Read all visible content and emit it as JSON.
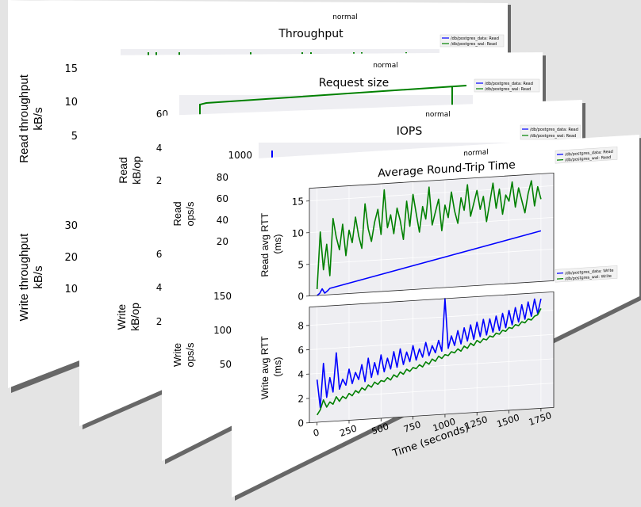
{
  "condition_label": "normal",
  "legend": {
    "read": [
      "/db/postgres_data: Read",
      "/db/postgres_wal: Read"
    ],
    "write": [
      "/db/postgres_data: Write",
      "/db/postgres_wal: Write"
    ]
  },
  "colors": {
    "data": "#0000ff",
    "wal": "#008000"
  },
  "x_axis": {
    "label": "Time (seconds)",
    "ticks": [
      0,
      250,
      500,
      750,
      1000,
      1250,
      1500,
      1750
    ],
    "range": [
      -60,
      1850
    ]
  },
  "pages": [
    {
      "title": "Throughput",
      "top_ylabel": [
        "Read throughput",
        "kB/s"
      ],
      "bottom_ylabel": [
        "Write throughput",
        "kB/s"
      ],
      "top_ticks": [
        "15",
        "10",
        "5"
      ],
      "bottom_ticks": [
        "30",
        "20",
        "10"
      ]
    },
    {
      "title": "Request size",
      "top_ylabel": [
        "Read",
        "kB/op"
      ],
      "bottom_ylabel": [
        "Write",
        "kB/op"
      ],
      "top_ticks": [
        "60",
        "40",
        "20"
      ],
      "bottom_ticks": [
        "60",
        "40",
        "20"
      ]
    },
    {
      "title": "IOPS",
      "top_ylabel": [
        "Read",
        "ops/s"
      ],
      "bottom_ylabel": [
        "Write",
        "ops/s"
      ],
      "top_ticks": [
        "1000",
        "80",
        "60",
        "40",
        "20"
      ],
      "bottom_ticks": [
        "150",
        "100",
        "50"
      ]
    }
  ],
  "chart_data": {
    "type": "line",
    "title": "Average Round-Trip Time",
    "xlabel": "Time (seconds)",
    "panels": [
      {
        "ylabel": "Read avg RTT\n(ms)",
        "ylim": [
          0,
          17
        ],
        "yticks": [
          0,
          5,
          10,
          15
        ],
        "series": [
          {
            "name": "/db/postgres_data: Read",
            "x": [
              0,
              20,
              40,
              60,
              80,
              100,
              1750
            ],
            "y": [
              0,
              0.3,
              1,
              0.3,
              0.6,
              1.0,
              8.0
            ]
          },
          {
            "name": "/db/postgres_wal: Read",
            "x": [
              0,
              25,
              50,
              75,
              100,
              125,
              150,
              175,
              200,
              225,
              250,
              275,
              300,
              325,
              350,
              375,
              400,
              425,
              450,
              475,
              500,
              525,
              550,
              575,
              600,
              625,
              650,
              675,
              700,
              725,
              750,
              775,
              800,
              825,
              850,
              875,
              900,
              925,
              950,
              975,
              1000,
              1025,
              1050,
              1075,
              1100,
              1125,
              1150,
              1175,
              1200,
              1225,
              1250,
              1275,
              1300,
              1325,
              1350,
              1375,
              1400,
              1425,
              1450,
              1475,
              1500,
              1525,
              1550,
              1575,
              1600,
              1625,
              1650,
              1675,
              1700,
              1725,
              1750
            ],
            "y": [
              1,
              10,
              4,
              8,
              3,
              12,
              9,
              7,
              11,
              6,
              10,
              8,
              12,
              9,
              7,
              14,
              10,
              8,
              11,
              13,
              9,
              16,
              10,
              12,
              9,
              13,
              11,
              8,
              14,
              10,
              15,
              12,
              9,
              13,
              11,
              16,
              10,
              12,
              14,
              9,
              13,
              11,
              15,
              12,
              10,
              14,
              12,
              16,
              11,
              13,
              15,
              12,
              14,
              10,
              13,
              16,
              12,
              15,
              11,
              14,
              13,
              16,
              12,
              15,
              13,
              11,
              14,
              16,
              12,
              15,
              13
            ]
          }
        ]
      },
      {
        "ylabel": "Write avg RTT\n(ms)",
        "ylim": [
          0,
          9.5
        ],
        "yticks": [
          0,
          2,
          4,
          6,
          8
        ],
        "series": [
          {
            "name": "/db/postgres_data: Write",
            "x": [
              0,
              25,
              50,
              75,
              100,
              125,
              150,
              175,
              200,
              225,
              250,
              275,
              300,
              325,
              350,
              375,
              400,
              425,
              450,
              475,
              500,
              525,
              550,
              575,
              600,
              625,
              650,
              675,
              700,
              725,
              750,
              775,
              800,
              825,
              850,
              875,
              900,
              925,
              950,
              975,
              1000,
              1025,
              1050,
              1075,
              1100,
              1125,
              1150,
              1175,
              1200,
              1225,
              1250,
              1275,
              1300,
              1325,
              1350,
              1375,
              1400,
              1425,
              1450,
              1475,
              1500,
              1525,
              1550,
              1575,
              1600,
              1625,
              1650,
              1675,
              1700,
              1725,
              1750
            ],
            "y": [
              3.5,
              1.2,
              4.8,
              2.0,
              3.6,
              2.4,
              5.6,
              2.6,
              3.4,
              2.9,
              4.2,
              3.0,
              3.9,
              3.3,
              4.5,
              3.1,
              5.0,
              3.4,
              4.6,
              3.6,
              5.2,
              3.8,
              4.9,
              4.0,
              5.4,
              4.1,
              5.6,
              4.3,
              5.3,
              4.5,
              5.8,
              4.6,
              5.5,
              4.8,
              6.0,
              4.9,
              5.7,
              5.1,
              6.1,
              5.2,
              9.5,
              5.4,
              6.4,
              5.6,
              6.8,
              5.7,
              7.0,
              5.9,
              7.2,
              6.0,
              7.4,
              6.2,
              7.6,
              6.3,
              7.6,
              6.5,
              7.8,
              6.6,
              8.0,
              6.8,
              8.2,
              7.0,
              8.4,
              7.2,
              8.6,
              7.4,
              8.8,
              7.6,
              9.0,
              7.8,
              9.0
            ]
          },
          {
            "name": "/db/postgres_wal: Write",
            "x": [
              0,
              25,
              50,
              75,
              100,
              125,
              150,
              175,
              200,
              225,
              250,
              275,
              300,
              325,
              350,
              375,
              400,
              425,
              450,
              475,
              500,
              525,
              550,
              575,
              600,
              625,
              650,
              675,
              700,
              725,
              750,
              775,
              800,
              825,
              850,
              875,
              900,
              925,
              950,
              975,
              1000,
              1025,
              1050,
              1075,
              1100,
              1125,
              1150,
              1175,
              1200,
              1225,
              1250,
              1275,
              1300,
              1325,
              1350,
              1375,
              1400,
              1425,
              1450,
              1475,
              1500,
              1525,
              1550,
              1575,
              1600,
              1625,
              1650,
              1675,
              1700,
              1725,
              1750
            ],
            "y": [
              0.6,
              1.0,
              1.8,
              1.2,
              1.6,
              1.4,
              2.0,
              1.6,
              2.0,
              1.8,
              2.2,
              2.0,
              2.4,
              2.2,
              2.6,
              2.4,
              2.8,
              2.6,
              3.0,
              2.8,
              3.1,
              3.0,
              3.3,
              3.1,
              3.5,
              3.3,
              3.7,
              3.5,
              3.9,
              3.7,
              4.0,
              3.9,
              4.2,
              4.0,
              4.4,
              4.2,
              4.6,
              4.4,
              4.8,
              4.6,
              4.9,
              4.8,
              5.1,
              5.0,
              5.3,
              5.1,
              5.5,
              5.3,
              5.7,
              5.5,
              5.9,
              5.7,
              6.0,
              5.9,
              6.2,
              6.1,
              6.4,
              6.3,
              6.6,
              6.5,
              6.8,
              6.7,
              7.0,
              6.9,
              7.2,
              7.1,
              7.4,
              7.3,
              7.6,
              7.7,
              8.2
            ]
          }
        ]
      }
    ]
  }
}
